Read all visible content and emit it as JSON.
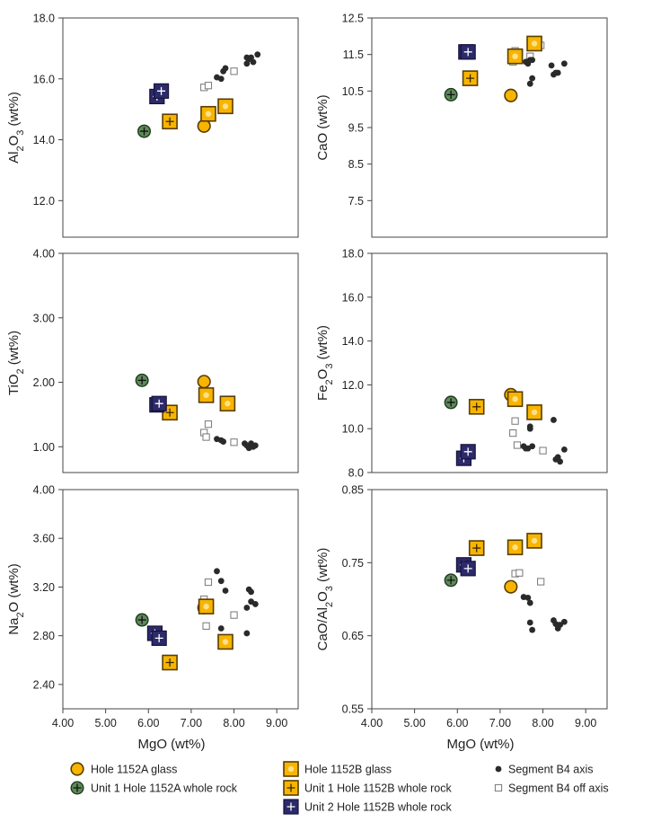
{
  "colors": {
    "glass_fill": "#f7b500",
    "glass_stroke": "#5a3d00",
    "unit1_fill": "#5e8a5a",
    "unit2_fill": "#2c2a6b",
    "seg_axis": "#2a2a2a",
    "seg_off_stroke": "#777777",
    "frame": "#444444"
  },
  "legend": [
    {
      "symbol": "glassA",
      "label": "Hole 1152A glass"
    },
    {
      "symbol": "glassB",
      "label": "Hole 1152B glass"
    },
    {
      "symbol": "axis",
      "label": "Segment B4 axis"
    },
    {
      "symbol": "unit1A",
      "label": "Unit 1 Hole 1152A whole rock"
    },
    {
      "symbol": "unit1B",
      "label": "Unit 1 Hole 1152B whole rock"
    },
    {
      "symbol": "off",
      "label": "Segment B4 off axis"
    },
    {
      "symbol": "unit2B",
      "label": "Unit 2 Hole 1152B whole rock"
    }
  ],
  "chart_data": [
    {
      "type": "scatter",
      "xlabel": "MgO (wt%)",
      "ylabel_parts": [
        [
          "Al",
          ""
        ],
        [
          "2",
          "sub"
        ],
        [
          "O",
          ""
        ],
        [
          "3",
          "sub"
        ],
        [
          " (wt%)",
          ""
        ]
      ],
      "xlim": [
        4,
        9.5
      ],
      "ylim": [
        10.8,
        18.0
      ],
      "xticks": [],
      "xtick_labels": [],
      "yticks": [
        12,
        14,
        16,
        18
      ],
      "ytick_labels": [
        "12.0",
        "14.0",
        "16.0",
        "18.0"
      ],
      "series": [
        {
          "symbol": "glassA",
          "points": [
            [
              7.3,
              14.45
            ]
          ]
        },
        {
          "symbol": "glassB",
          "points": [
            [
              7.4,
              14.85
            ],
            [
              7.8,
              15.1
            ]
          ]
        },
        {
          "symbol": "unit1A",
          "points": [
            [
              5.9,
              14.28
            ]
          ]
        },
        {
          "symbol": "unit1B",
          "points": [
            [
              6.5,
              14.6
            ]
          ]
        },
        {
          "symbol": "unit2B",
          "points": [
            [
              6.2,
              15.42
            ],
            [
              6.3,
              15.6
            ]
          ]
        },
        {
          "symbol": "axis",
          "points": [
            [
              7.6,
              16.05
            ],
            [
              7.7,
              16.0
            ],
            [
              7.75,
              16.25
            ],
            [
              7.8,
              16.35
            ],
            [
              8.3,
              16.5
            ],
            [
              8.35,
              16.65
            ],
            [
              8.4,
              16.7
            ],
            [
              8.45,
              16.55
            ],
            [
              8.55,
              16.8
            ],
            [
              8.3,
              16.7
            ]
          ]
        },
        {
          "symbol": "off",
          "points": [
            [
              7.3,
              15.72
            ],
            [
              7.4,
              15.78
            ],
            [
              8.0,
              16.25
            ]
          ]
        }
      ]
    },
    {
      "type": "scatter",
      "xlabel": "MgO (wt%)",
      "ylabel_parts": [
        [
          "CaO (wt%)",
          ""
        ]
      ],
      "xlim": [
        4,
        9.5
      ],
      "ylim": [
        6.5,
        12.5
      ],
      "xticks": [],
      "xtick_labels": [],
      "yticks": [
        7.5,
        8.5,
        9.5,
        10.5,
        11.5,
        12.5
      ],
      "ytick_labels": [
        "7.5",
        "8.5",
        "9.5",
        "10.5",
        "11.5",
        "12.5"
      ],
      "series": [
        {
          "symbol": "glassA",
          "points": [
            [
              7.25,
              10.38
            ]
          ]
        },
        {
          "symbol": "glassB",
          "points": [
            [
              7.35,
              11.45
            ],
            [
              7.8,
              11.8
            ]
          ]
        },
        {
          "symbol": "unit1A",
          "points": [
            [
              5.85,
              10.4
            ]
          ]
        },
        {
          "symbol": "unit1B",
          "points": [
            [
              6.3,
              10.85
            ]
          ]
        },
        {
          "symbol": "unit2B",
          "points": [
            [
              6.2,
              11.57
            ],
            [
              6.25,
              11.57
            ]
          ]
        },
        {
          "symbol": "axis",
          "points": [
            [
              7.6,
              11.3
            ],
            [
              7.65,
              11.25
            ],
            [
              7.7,
              11.35
            ],
            [
              7.7,
              10.7
            ],
            [
              7.75,
              10.85
            ],
            [
              8.2,
              11.2
            ],
            [
              8.25,
              10.95
            ],
            [
              8.3,
              11.0
            ],
            [
              8.35,
              11.0
            ],
            [
              8.5,
              11.25
            ],
            [
              7.75,
              11.35
            ]
          ]
        },
        {
          "symbol": "off",
          "points": [
            [
              7.3,
              11.3
            ],
            [
              7.35,
              11.6
            ],
            [
              7.45,
              11.55
            ],
            [
              7.7,
              11.45
            ],
            [
              7.95,
              11.75
            ]
          ]
        }
      ]
    },
    {
      "type": "scatter",
      "xlabel": "MgO (wt%)",
      "ylabel_parts": [
        [
          "TiO",
          ""
        ],
        [
          "2",
          "sub"
        ],
        [
          " (wt%)",
          ""
        ]
      ],
      "xlim": [
        4,
        9.5
      ],
      "ylim": [
        0.6,
        4.0
      ],
      "xticks": [],
      "xtick_labels": [],
      "yticks": [
        1,
        2,
        3,
        4
      ],
      "ytick_labels": [
        "1.00",
        "2.00",
        "3.00",
        "4.00"
      ],
      "series": [
        {
          "symbol": "glassA",
          "points": [
            [
              7.3,
              2.01
            ]
          ]
        },
        {
          "symbol": "glassB",
          "points": [
            [
              7.35,
              1.8
            ],
            [
              7.85,
              1.67
            ]
          ]
        },
        {
          "symbol": "unit1A",
          "points": [
            [
              5.85,
              2.03
            ]
          ]
        },
        {
          "symbol": "unit1B",
          "points": [
            [
              6.5,
              1.53
            ]
          ]
        },
        {
          "symbol": "unit2B",
          "points": [
            [
              6.2,
              1.65
            ],
            [
              6.25,
              1.67
            ]
          ]
        },
        {
          "symbol": "axis",
          "points": [
            [
              7.6,
              1.12
            ],
            [
              7.7,
              1.1
            ],
            [
              7.75,
              1.08
            ],
            [
              8.25,
              1.05
            ],
            [
              8.3,
              1.02
            ],
            [
              8.35,
              0.98
            ],
            [
              8.4,
              1.05
            ],
            [
              8.5,
              1.02
            ],
            [
              8.45,
              1.0
            ]
          ]
        },
        {
          "symbol": "off",
          "points": [
            [
              7.3,
              1.22
            ],
            [
              7.35,
              1.15
            ],
            [
              7.4,
              1.35
            ],
            [
              8.0,
              1.07
            ]
          ]
        }
      ]
    },
    {
      "type": "scatter",
      "xlabel": "MgO (wt%)",
      "ylabel_parts": [
        [
          "Fe",
          ""
        ],
        [
          "2",
          "sub"
        ],
        [
          "O",
          ""
        ],
        [
          "3",
          "sub"
        ],
        [
          " (wt%)",
          ""
        ]
      ],
      "xlim": [
        4,
        9.5
      ],
      "ylim": [
        8.0,
        18.0
      ],
      "xticks": [],
      "xtick_labels": [],
      "yticks": [
        8,
        10,
        12,
        14,
        16,
        18
      ],
      "ytick_labels": [
        "8.0",
        "10.0",
        "12.0",
        "14.0",
        "16.0",
        "18.0"
      ],
      "series": [
        {
          "symbol": "glassA",
          "points": [
            [
              7.25,
              11.55
            ]
          ]
        },
        {
          "symbol": "glassB",
          "points": [
            [
              7.35,
              11.35
            ],
            [
              7.8,
              10.75
            ]
          ]
        },
        {
          "symbol": "unit1A",
          "points": [
            [
              5.85,
              11.2
            ]
          ]
        },
        {
          "symbol": "unit1B",
          "points": [
            [
              6.45,
              11.0
            ]
          ]
        },
        {
          "symbol": "unit2B",
          "points": [
            [
              6.15,
              8.65
            ],
            [
              6.25,
              8.95
            ]
          ]
        },
        {
          "symbol": "axis",
          "points": [
            [
              7.55,
              9.2
            ],
            [
              7.65,
              9.1
            ],
            [
              7.7,
              10.1
            ],
            [
              7.75,
              9.2
            ],
            [
              7.7,
              10.0
            ],
            [
              8.25,
              10.4
            ],
            [
              8.3,
              8.6
            ],
            [
              8.35,
              8.7
            ],
            [
              8.4,
              8.5
            ],
            [
              8.5,
              9.05
            ],
            [
              7.6,
              9.1
            ]
          ]
        },
        {
          "symbol": "off",
          "points": [
            [
              7.3,
              9.8
            ],
            [
              7.35,
              10.35
            ],
            [
              7.4,
              9.25
            ],
            [
              8.0,
              9.0
            ]
          ]
        }
      ]
    },
    {
      "type": "scatter",
      "xlabel": "MgO (wt%)",
      "ylabel_parts": [
        [
          "Na",
          ""
        ],
        [
          "2",
          "sub"
        ],
        [
          "O",
          ""
        ],
        [
          " (wt%)",
          ""
        ]
      ],
      "xlim": [
        4,
        9.5
      ],
      "ylim": [
        2.2,
        4.0
      ],
      "xticks": [
        4,
        5,
        6,
        7,
        8,
        9
      ],
      "xtick_labels": [
        "4.00",
        "5.00",
        "6.00",
        "7.00",
        "8.00",
        "9.00"
      ],
      "yticks": [
        2.4,
        2.8,
        3.2,
        3.6,
        4.0
      ],
      "ytick_labels": [
        "2.40",
        "2.80",
        "3.20",
        "3.60",
        "4.00"
      ],
      "series": [
        {
          "symbol": "glassA",
          "points": [
            [
              7.3,
              3.03
            ]
          ]
        },
        {
          "symbol": "glassB",
          "points": [
            [
              7.35,
              3.04
            ],
            [
              7.8,
              2.75
            ]
          ]
        },
        {
          "symbol": "unit1A",
          "points": [
            [
              5.85,
              2.93
            ]
          ]
        },
        {
          "symbol": "unit1B",
          "points": [
            [
              6.5,
              2.58
            ]
          ]
        },
        {
          "symbol": "unit2B",
          "points": [
            [
              6.15,
              2.82
            ],
            [
              6.25,
              2.78
            ]
          ]
        },
        {
          "symbol": "axis",
          "points": [
            [
              7.6,
              3.33
            ],
            [
              7.7,
              3.25
            ],
            [
              7.7,
              2.86
            ],
            [
              7.8,
              3.17
            ],
            [
              8.3,
              2.82
            ],
            [
              8.3,
              3.03
            ],
            [
              8.35,
              3.18
            ],
            [
              8.4,
              3.16
            ],
            [
              8.4,
              3.08
            ],
            [
              8.5,
              3.06
            ]
          ]
        },
        {
          "symbol": "off",
          "points": [
            [
              7.3,
              3.1
            ],
            [
              7.35,
              2.88
            ],
            [
              7.4,
              3.24
            ],
            [
              8.0,
              2.97
            ]
          ]
        }
      ]
    },
    {
      "type": "scatter",
      "xlabel": "MgO (wt%)",
      "ylabel_parts": [
        [
          "CaO/Al",
          ""
        ],
        [
          "2",
          "sub"
        ],
        [
          "O",
          ""
        ],
        [
          "3",
          "sub"
        ],
        [
          " (wt%)",
          ""
        ]
      ],
      "xlim": [
        4,
        9.5
      ],
      "ylim": [
        0.55,
        0.85
      ],
      "xticks": [
        4,
        5,
        6,
        7,
        8,
        9
      ],
      "xtick_labels": [
        "4.00",
        "5.00",
        "6.00",
        "7.00",
        "8.00",
        "9.00"
      ],
      "yticks": [
        0.55,
        0.65,
        0.75,
        0.85
      ],
      "ytick_labels": [
        "0.55",
        "0.65",
        "0.75",
        "0.85"
      ],
      "series": [
        {
          "symbol": "glassA",
          "points": [
            [
              7.25,
              0.717
            ]
          ]
        },
        {
          "symbol": "glassB",
          "points": [
            [
              7.35,
              0.771
            ],
            [
              7.8,
              0.78
            ]
          ]
        },
        {
          "symbol": "unit1A",
          "points": [
            [
              5.85,
              0.726
            ]
          ]
        },
        {
          "symbol": "unit1B",
          "points": [
            [
              6.45,
              0.77
            ]
          ]
        },
        {
          "symbol": "unit2B",
          "points": [
            [
              6.15,
              0.747
            ],
            [
              6.25,
              0.742
            ]
          ]
        },
        {
          "symbol": "axis",
          "points": [
            [
              7.55,
              0.703
            ],
            [
              7.65,
              0.702
            ],
            [
              7.7,
              0.695
            ],
            [
              7.7,
              0.668
            ],
            [
              7.75,
              0.658
            ],
            [
              8.25,
              0.671
            ],
            [
              8.3,
              0.666
            ],
            [
              8.35,
              0.66
            ],
            [
              8.4,
              0.665
            ],
            [
              8.5,
              0.669
            ]
          ]
        },
        {
          "symbol": "off",
          "points": [
            [
              7.35,
              0.735
            ],
            [
              7.45,
              0.736
            ],
            [
              7.95,
              0.724
            ]
          ]
        }
      ]
    }
  ]
}
